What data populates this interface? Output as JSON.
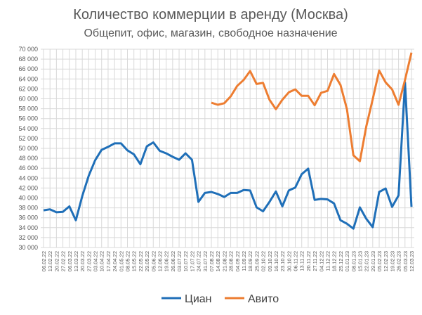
{
  "chart_data": {
    "type": "line",
    "title": "Количество коммерции в аренду (Москва)",
    "subtitle": "Общепит, офис, магазин, свободное назначение",
    "xlabel": "",
    "ylabel": "",
    "ylim": [
      30000,
      70000
    ],
    "ystep": 2000,
    "ytick_labels": [
      "30 000",
      "32 000",
      "34 000",
      "36 000",
      "38 000",
      "40 000",
      "42 000",
      "44 000",
      "46 000",
      "48 000",
      "50 000",
      "52 000",
      "54 000",
      "56 000",
      "58 000",
      "60 000",
      "62 000",
      "64 000",
      "66 000",
      "68 000",
      "70 000"
    ],
    "grid": true,
    "legend_position": "bottom",
    "x": [
      "06.02.22",
      "13.02.22",
      "20.02.22",
      "27.02.22",
      "06.03.22",
      "13.03.22",
      "20.03.22",
      "27.03.22",
      "03.04.22",
      "10.04.22",
      "17.04.22",
      "24.04.22",
      "01.05.22",
      "08.05.22",
      "15.05.22",
      "22.05.22",
      "29.05.22",
      "05.06.22",
      "12.06.22",
      "19.06.22",
      "26.06.22",
      "03.07.22",
      "10.07.22",
      "17.07.22",
      "24.07.22",
      "31.07.22",
      "07.08.22",
      "14.08.22",
      "21.08.22",
      "28.08.22",
      "04.09.22",
      "11.09.22",
      "18.09.22",
      "25.09.22",
      "02.10.22",
      "09.10.22",
      "16.10.22",
      "23.10.22",
      "30.10.22",
      "06.11.22",
      "13.11.22",
      "20.11.22",
      "27.11.22",
      "04.12.22",
      "11.12.22",
      "18.12.22",
      "25.12.22",
      "01.01.23",
      "08.01.23",
      "15.01.23",
      "22.01.23",
      "29.01.23",
      "05.02.23",
      "12.02.23",
      "19.02.23",
      "26.02.23",
      "05.03.23",
      "12.03.23"
    ],
    "series": [
      {
        "name": "Циан",
        "color": "#1F6FB8",
        "values": [
          37500,
          37700,
          37100,
          37200,
          38300,
          35500,
          40400,
          44500,
          47600,
          49700,
          50300,
          51000,
          51000,
          49600,
          48800,
          46800,
          50400,
          51200,
          49500,
          49000,
          48300,
          47700,
          49000,
          47700,
          39200,
          41000,
          41200,
          40800,
          40200,
          41000,
          41000,
          41600,
          41500,
          38100,
          37300,
          39200,
          41300,
          38300,
          41500,
          42100,
          44800,
          45900,
          39600,
          39800,
          39700,
          38900,
          35500,
          34800,
          33800,
          38100,
          35800,
          34100,
          41200,
          41900,
          38200,
          40500,
          63300,
          38200
        ]
      },
      {
        "name": "Авито",
        "color": "#ED7D31",
        "values": [
          null,
          null,
          null,
          null,
          null,
          null,
          null,
          null,
          null,
          null,
          null,
          null,
          null,
          null,
          null,
          null,
          null,
          null,
          null,
          null,
          null,
          null,
          null,
          null,
          null,
          null,
          59200,
          58800,
          59100,
          60500,
          62600,
          63800,
          65600,
          63000,
          63200,
          59800,
          57900,
          59800,
          61300,
          61900,
          60600,
          60600,
          58700,
          61200,
          61600,
          65000,
          62800,
          57900,
          48600,
          47400,
          54400,
          59900,
          65700,
          63300,
          61900,
          58800,
          63800,
          69300
        ]
      }
    ]
  }
}
